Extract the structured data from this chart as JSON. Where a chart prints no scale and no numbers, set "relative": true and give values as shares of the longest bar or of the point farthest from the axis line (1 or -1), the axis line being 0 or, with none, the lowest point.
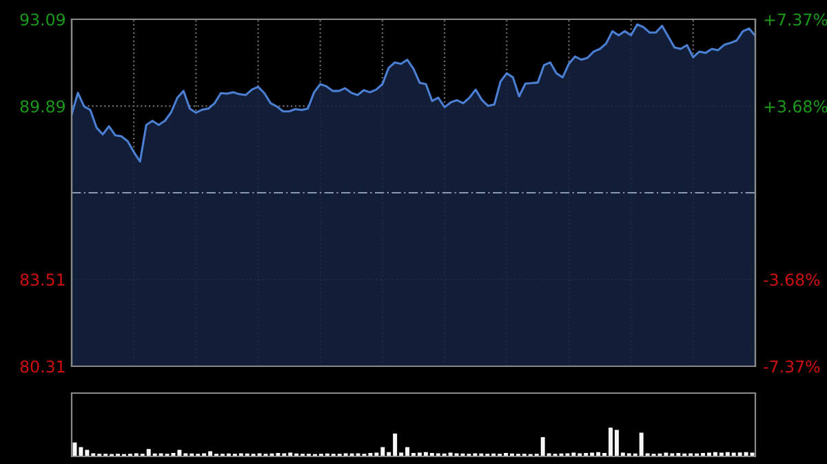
{
  "chart_data": [
    {
      "type": "area",
      "categories": [
        null,
        null,
        null,
        null,
        null,
        null,
        null,
        null,
        null,
        null,
        null,
        null,
        null,
        null,
        null,
        null,
        null,
        null,
        null,
        null,
        null,
        null,
        null,
        null,
        null,
        null,
        null,
        null,
        null,
        null,
        null,
        null,
        null,
        null,
        null,
        null,
        null,
        null,
        null,
        null,
        null,
        null,
        null,
        null,
        null,
        null,
        null,
        null,
        null,
        null,
        null,
        null,
        null,
        null,
        null,
        null,
        null,
        null,
        null,
        null,
        null,
        null,
        null,
        null,
        null,
        null,
        null,
        null,
        null,
        null,
        null,
        null,
        null,
        null,
        null,
        null,
        null,
        null,
        null,
        null,
        null,
        null,
        null,
        null,
        null,
        null,
        null,
        null,
        null,
        null,
        null,
        null,
        null,
        null,
        null,
        null,
        null,
        null,
        null,
        null,
        null,
        null,
        null,
        null,
        null,
        null,
        null,
        null,
        null,
        null,
        null
      ],
      "series": [
        {
          "color": "#4a7fd4",
          "values": [
            89.58,
            90.38,
            89.88,
            89.75,
            89.1,
            88.85,
            89.15,
            88.82,
            88.78,
            88.6,
            88.2,
            87.85,
            89.2,
            89.35,
            89.2,
            89.35,
            89.66,
            90.2,
            90.45,
            89.8,
            89.65,
            89.76,
            89.8,
            90.0,
            90.37,
            90.35,
            90.4,
            90.33,
            90.3,
            90.5,
            90.6,
            90.37,
            90.0,
            89.88,
            89.7,
            89.7,
            89.78,
            89.75,
            89.8,
            90.4,
            90.7,
            90.62,
            90.45,
            90.45,
            90.55,
            90.38,
            90.3,
            90.48,
            90.4,
            90.5,
            90.7,
            91.3,
            91.5,
            91.45,
            91.6,
            91.27,
            90.75,
            90.7,
            90.08,
            90.2,
            89.85,
            90.03,
            90.11,
            90.0,
            90.2,
            90.5,
            90.12,
            89.9,
            89.95,
            90.8,
            91.1,
            90.95,
            90.25,
            90.72,
            90.74,
            90.76,
            91.4,
            91.5,
            91.1,
            90.95,
            91.45,
            91.72,
            91.6,
            91.67,
            91.9,
            92.0,
            92.2,
            92.65,
            92.5,
            92.65,
            92.5,
            92.9,
            92.8,
            92.6,
            92.6,
            92.85,
            92.45,
            92.05,
            92.0,
            92.14,
            91.69,
            91.9,
            91.85,
            92.0,
            91.95,
            92.15,
            92.22,
            92.31,
            92.65,
            92.75,
            92.48
          ]
        }
      ],
      "ylim": [
        80.31,
        93.09
      ],
      "yticks": [
        80.31,
        83.51,
        89.89,
        93.09
      ],
      "y2lim": [
        -7.37,
        7.37
      ],
      "y2ticks": [
        {
          "value": -7.37,
          "label": "-7.37%"
        },
        {
          "value": -3.68,
          "label": "-3.68%"
        },
        {
          "value": 3.68,
          "label": "+3.68%"
        },
        {
          "value": 7.37,
          "label": "+7.37%"
        }
      ],
      "ref_lines": [
        {
          "axis": "y2",
          "value": 0,
          "line_style": "dashed"
        }
      ],
      "grid": true,
      "tick_labels": "y"
    },
    {
      "type": "bar",
      "relative": true,
      "categories": [
        null,
        null,
        null,
        null,
        null,
        null,
        null,
        null,
        null,
        null,
        null,
        null,
        null,
        null,
        null,
        null,
        null,
        null,
        null,
        null,
        null,
        null,
        null,
        null,
        null,
        null,
        null,
        null,
        null,
        null,
        null,
        null,
        null,
        null,
        null,
        null,
        null,
        null,
        null,
        null,
        null,
        null,
        null,
        null,
        null,
        null,
        null,
        null,
        null,
        null,
        null,
        null,
        null,
        null,
        null,
        null,
        null,
        null,
        null,
        null,
        null,
        null,
        null,
        null,
        null,
        null,
        null,
        null,
        null,
        null,
        null,
        null,
        null,
        null,
        null,
        null,
        null,
        null,
        null,
        null,
        null,
        null,
        null,
        null,
        null,
        null,
        null,
        null,
        null,
        null,
        null,
        null,
        null,
        null,
        null,
        null,
        null,
        null,
        null,
        null,
        null,
        null,
        null,
        null,
        null,
        null,
        null,
        null,
        null,
        null,
        null
      ],
      "values": [
        0.47,
        0.3,
        0.2,
        0.08,
        0.06,
        0.06,
        0.05,
        0.06,
        0.05,
        0.06,
        0.08,
        0.06,
        0.23,
        0.07,
        0.08,
        0.06,
        0.09,
        0.2,
        0.08,
        0.07,
        0.06,
        0.08,
        0.15,
        0.06,
        0.06,
        0.07,
        0.06,
        0.08,
        0.07,
        0.06,
        0.08,
        0.06,
        0.07,
        0.09,
        0.08,
        0.1,
        0.07,
        0.06,
        0.06,
        0.05,
        0.06,
        0.07,
        0.06,
        0.06,
        0.08,
        0.07,
        0.08,
        0.06,
        0.09,
        0.1,
        0.3,
        0.12,
        0.79,
        0.1,
        0.3,
        0.09,
        0.1,
        0.12,
        0.09,
        0.08,
        0.07,
        0.1,
        0.08,
        0.07,
        0.06,
        0.08,
        0.07,
        0.06,
        0.07,
        0.06,
        0.09,
        0.07,
        0.06,
        0.06,
        0.05,
        0.06,
        0.66,
        0.08,
        0.06,
        0.07,
        0.08,
        0.1,
        0.08,
        0.09,
        0.1,
        0.12,
        0.09,
        1,
        0.92,
        0.1,
        0.08,
        0.07,
        0.82,
        0.08,
        0.06,
        0.07,
        0.1,
        0.08,
        0.09,
        0.07,
        0.08,
        0.07,
        0.09,
        0.1,
        0.12,
        0.1,
        0.12,
        0.1,
        0.11,
        0.12,
        0.1
      ],
      "color": "#c8c8c8"
    }
  ]
}
